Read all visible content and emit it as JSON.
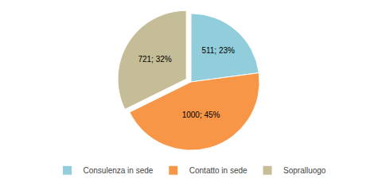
{
  "chart_data": {
    "type": "pie",
    "categories": [
      "Consulenza in sede",
      "Contatto in sede",
      "Sopralluogo"
    ],
    "values": [
      511,
      1000,
      721
    ],
    "value_labels": [
      "511; 23%",
      "1000; 45%",
      "721; 32%"
    ],
    "data_labels": true,
    "colors": [
      "#92CDDC",
      "#F79646",
      "#C4BD97"
    ],
    "legend": "bottom"
  }
}
